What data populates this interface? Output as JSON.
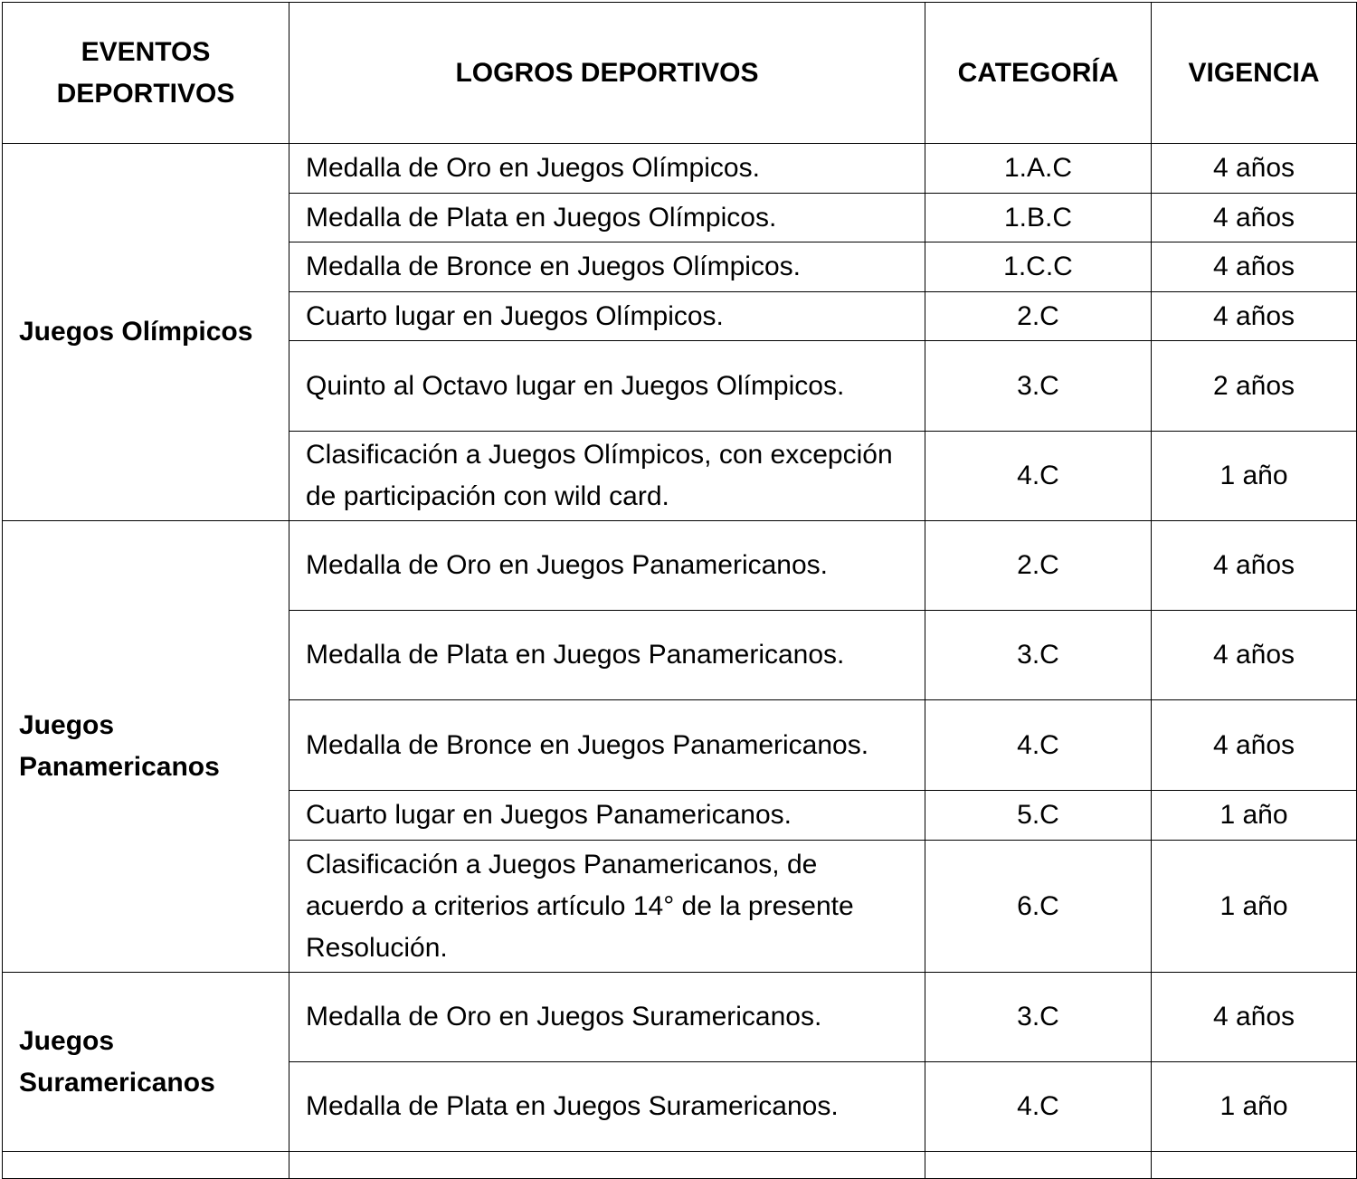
{
  "headers": [
    "EVENTOS DEPORTIVOS",
    "LOGROS DEPORTIVOS",
    "CATEGORÍA",
    "VIGENCIA"
  ],
  "groups": [
    {
      "event": "Juegos Olímpicos",
      "rows": [
        {
          "logro": "Medalla de Oro en Juegos Olímpicos.",
          "categoria": "1.A.C",
          "vigencia": "4 años"
        },
        {
          "logro": "Medalla de Plata en Juegos Olímpicos.",
          "categoria": "1.B.C",
          "vigencia": "4 años"
        },
        {
          "logro": "Medalla de Bronce en Juegos Olímpicos.",
          "categoria": "1.C.C",
          "vigencia": "4 años"
        },
        {
          "logro": "Cuarto lugar en Juegos Olímpicos.",
          "categoria": "2.C",
          "vigencia": "4 años"
        },
        {
          "logro": "Quinto al Octavo lugar en Juegos Olímpicos.",
          "categoria": "3.C",
          "vigencia": "2 años"
        },
        {
          "logro": "Clasificación a Juegos Olímpicos, con excepción de participación con wild card.",
          "categoria": "4.C",
          "vigencia": "1 año"
        }
      ]
    },
    {
      "event": "Juegos Panamericanos",
      "rows": [
        {
          "logro": "Medalla de Oro en Juegos Panamericanos.",
          "categoria": "2.C",
          "vigencia": "4 años"
        },
        {
          "logro": "Medalla de Plata en Juegos Panamericanos.",
          "categoria": "3.C",
          "vigencia": "4 años"
        },
        {
          "logro": "Medalla de Bronce en Juegos Panamericanos.",
          "categoria": "4.C",
          "vigencia": "4 años"
        },
        {
          "logro": "Cuarto lugar en Juegos Panamericanos.",
          "categoria": "5.C",
          "vigencia": "1 año"
        },
        {
          "logro": "Clasificación a Juegos Panamericanos, de acuerdo a criterios artículo 14° de la presente Resolución.",
          "categoria": "6.C",
          "vigencia": "1 año"
        }
      ]
    },
    {
      "event": "Juegos Suramericanos",
      "rows": [
        {
          "logro": "Medalla de Oro en Juegos Suramericanos.",
          "categoria": "3.C",
          "vigencia": "4 años"
        },
        {
          "logro": "Medalla de Plata en Juegos Suramericanos.",
          "categoria": "4.C",
          "vigencia": "1 año"
        }
      ]
    }
  ]
}
